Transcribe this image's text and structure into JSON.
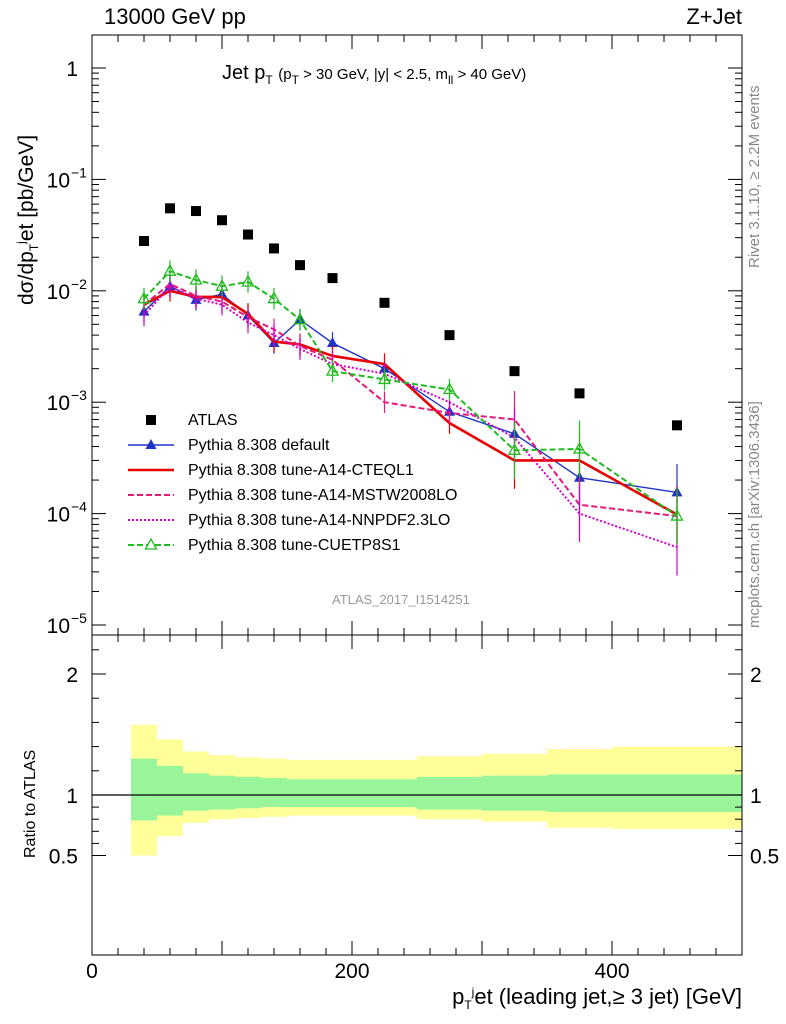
{
  "header": {
    "left": "13000 GeV pp",
    "right": "Z+Jet"
  },
  "side_labels": {
    "rivet": "Rivet 3.1.10, ≥ 2.2M events",
    "mcplots": "mcplots.cern.ch [arXiv:1306.3436]"
  },
  "watermark": "ATLAS_2017_I1514251",
  "chart_data": [
    {
      "type": "line",
      "panel": "main",
      "title": {
        "main": "Jet p",
        "main_sub": "T",
        "cuts_1": "(p",
        "cuts_1_sub": "T",
        "cuts_2": "> 30 GeV, |y| < 2.5, m",
        "cuts_2_sub": "ll",
        "cuts_3": "> 40 GeV)"
      },
      "ylabel": {
        "part1": "dσ/dp",
        "sub": "T",
        "sup": "j",
        "part2": "et [pb/GeV]"
      },
      "y_scale": "log",
      "ylim": [
        8e-06,
        2.0
      ],
      "xlim": [
        0,
        500
      ],
      "y_ticks": [
        {
          "value": 1,
          "label": "1"
        },
        {
          "value": 0.1,
          "base": "10",
          "exp": "−1"
        },
        {
          "value": 0.01,
          "base": "10",
          "exp": "−2"
        },
        {
          "value": 0.001,
          "base": "10",
          "exp": "−3"
        },
        {
          "value": 0.0001,
          "base": "10",
          "exp": "−4"
        },
        {
          "value": 1e-05,
          "base": "10",
          "exp": "−5"
        }
      ],
      "legend_position": "lower-left",
      "series": [
        {
          "name": "ATLAS",
          "color": "#000000",
          "marker": "square",
          "x": [
            40,
            60,
            80,
            100,
            120,
            140,
            160,
            185,
            225,
            275,
            325,
            375,
            450
          ],
          "y": [
            0.028,
            0.055,
            0.052,
            0.043,
            0.032,
            0.024,
            0.017,
            0.013,
            0.0078,
            0.004,
            0.0019,
            0.0012,
            0.00062
          ]
        },
        {
          "name": "Pythia 8.308 default",
          "color": "#1f33c8",
          "marker": "triangle-filled",
          "line": "solid",
          "x": [
            40,
            60,
            80,
            100,
            120,
            140,
            160,
            185,
            225,
            275,
            325,
            375,
            450
          ],
          "y": [
            0.0065,
            0.011,
            0.0083,
            0.0093,
            0.006,
            0.0034,
            0.0055,
            0.0034,
            0.002,
            0.00082,
            0.00052,
            0.00021,
            0.000155
          ]
        },
        {
          "name": "Pythia 8.308 tune-A14-CTEQL1",
          "color": "#e60000",
          "marker": "none",
          "line": "solid",
          "x": [
            40,
            60,
            80,
            100,
            120,
            140,
            160,
            185,
            225,
            275,
            325,
            375,
            450
          ],
          "y": [
            0.0075,
            0.01,
            0.0088,
            0.0088,
            0.0062,
            0.0035,
            0.0033,
            0.0026,
            0.0022,
            0.00065,
            0.0003,
            0.0003,
            9.8e-05
          ]
        },
        {
          "name": "Pythia 8.308 tune-A14-MSTW2008LO",
          "color": "#e6187a",
          "marker": "none",
          "line": "dashed",
          "x": [
            40,
            60,
            80,
            100,
            120,
            140,
            160,
            185,
            225,
            275,
            325,
            375,
            450
          ],
          "y": [
            0.0075,
            0.0115,
            0.009,
            0.008,
            0.0058,
            0.0045,
            0.0032,
            0.0024,
            0.001,
            0.0008,
            0.0007,
            0.00012,
            9.5e-05
          ]
        },
        {
          "name": "Pythia 8.308 tune-A14-NNPDF2.3LO",
          "color": "#d400c8",
          "marker": "none",
          "line": "dotted",
          "x": [
            40,
            60,
            80,
            100,
            120,
            140,
            160,
            185,
            225,
            275,
            325,
            375,
            450
          ],
          "y": [
            0.006,
            0.011,
            0.0085,
            0.0075,
            0.0052,
            0.004,
            0.003,
            0.0022,
            0.0018,
            0.001,
            0.00048,
            0.0001,
            5e-05
          ]
        },
        {
          "name": "Pythia 8.308 tune-CUETP8S1",
          "color": "#22bb22",
          "marker": "triangle-open",
          "line": "dashed",
          "x": [
            40,
            60,
            80,
            100,
            120,
            140,
            160,
            185,
            225,
            275,
            325,
            375,
            450
          ],
          "y": [
            0.0085,
            0.015,
            0.0125,
            0.011,
            0.012,
            0.0085,
            0.0055,
            0.0019,
            0.0016,
            0.0013,
            0.00037,
            0.00038,
            9.5e-05
          ]
        }
      ]
    },
    {
      "type": "area",
      "panel": "ratio",
      "ylabel": "Ratio to ATLAS",
      "xlabel": {
        "part1": "p",
        "sub": "T",
        "sup": "j",
        "part2": "et (leading jet,≥ 3 jet) [GeV]"
      },
      "xlim": [
        0,
        500
      ],
      "ylim": [
        0.4,
        2.3
      ],
      "y_ticks": [
        "0.5",
        "1",
        "2"
      ],
      "x_ticks": [
        "0",
        "200",
        "400"
      ],
      "reference_line": 1,
      "bin_edges": [
        30,
        50,
        70,
        90,
        110,
        130,
        150,
        170,
        200,
        250,
        300,
        350,
        400,
        500
      ],
      "band_1sigma": {
        "color": "#99f599",
        "low": [
          0.79,
          0.83,
          0.87,
          0.88,
          0.89,
          0.9,
          0.9,
          0.9,
          0.9,
          0.88,
          0.87,
          0.86,
          0.86
        ],
        "high": [
          1.3,
          1.24,
          1.18,
          1.16,
          1.15,
          1.14,
          1.13,
          1.13,
          1.13,
          1.15,
          1.16,
          1.17,
          1.17
        ]
      },
      "band_2sigma": {
        "color": "#ffff99",
        "low": [
          0.5,
          0.66,
          0.77,
          0.8,
          0.81,
          0.82,
          0.83,
          0.83,
          0.83,
          0.8,
          0.78,
          0.73,
          0.72
        ],
        "high": [
          1.58,
          1.46,
          1.36,
          1.33,
          1.31,
          1.3,
          1.29,
          1.29,
          1.29,
          1.32,
          1.34,
          1.38,
          1.4
        ]
      }
    }
  ]
}
